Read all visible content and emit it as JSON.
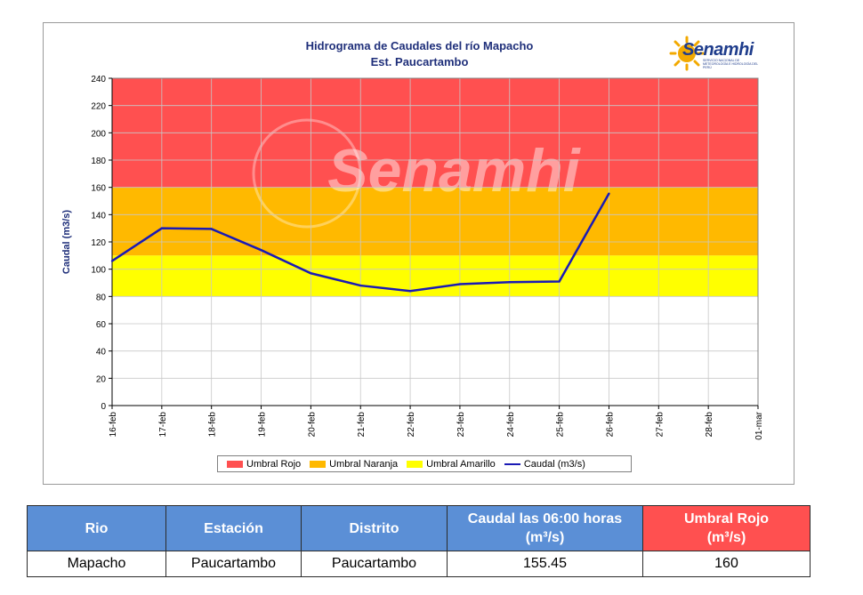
{
  "chart_data": {
    "type": "line",
    "title_line1": "Hidrograma de Caudales del río Mapacho",
    "title_line2": "Est. Paucartambo",
    "ylabel": "Caudal (m3/s)",
    "ylim": [
      0,
      240
    ],
    "yticks": [
      0,
      20,
      40,
      60,
      80,
      100,
      120,
      140,
      160,
      180,
      200,
      220,
      240
    ],
    "categories": [
      "16-feb",
      "17-feb",
      "18-feb",
      "19-feb",
      "20-feb",
      "21-feb",
      "22-feb",
      "23-feb",
      "24-feb",
      "25-feb",
      "26-feb",
      "27-feb",
      "28-feb",
      "01-mar"
    ],
    "bands": [
      {
        "name": "Umbral Rojo",
        "from": 160,
        "to": 240,
        "color": "#ff5050"
      },
      {
        "name": "Umbral Naranja",
        "from": 110,
        "to": 160,
        "color": "#ffb900"
      },
      {
        "name": "Umbral Amarillo",
        "from": 80,
        "to": 110,
        "color": "#ffff00"
      }
    ],
    "series": [
      {
        "name": "Caudal (m3/s)",
        "color": "#1a1ab5",
        "points": [
          [
            0,
            106
          ],
          [
            1,
            130
          ],
          [
            2,
            129.5
          ],
          [
            3,
            114
          ],
          [
            4,
            97
          ],
          [
            5,
            88
          ],
          [
            6,
            84
          ],
          [
            7,
            89
          ],
          [
            8,
            90.5
          ],
          [
            9,
            91
          ],
          [
            10,
            155.45
          ]
        ]
      }
    ],
    "grid": true,
    "legend_position": "bottom",
    "watermark": "Senamhi"
  },
  "logo": {
    "name": "Senamhi",
    "subtitle": "SERVICIO NACIONAL DE METEOROLOGÍA E HIDROLOGÍA DEL PERÚ"
  },
  "table": {
    "headers": {
      "rio": "Rio",
      "estacion": "Estación",
      "distrito": "Distrito",
      "caudal_line1": "Caudal las 06:00 horas",
      "caudal_line2": "(m³/s)",
      "umbral_line1": "Umbral Rojo",
      "umbral_line2": "(m³/s)"
    },
    "row": {
      "rio": "Mapacho",
      "estacion": "Paucartambo",
      "distrito": "Paucartambo",
      "caudal": "155.45",
      "umbral": "160"
    }
  }
}
